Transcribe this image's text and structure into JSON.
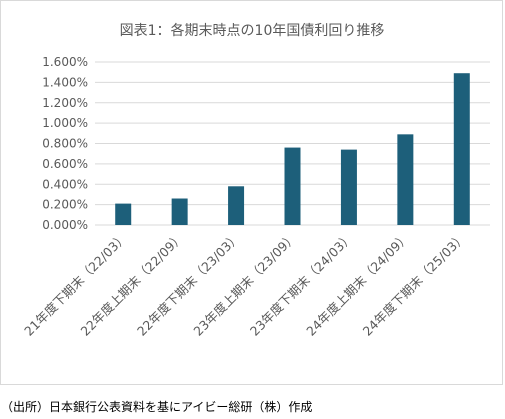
{
  "chart_data": {
    "type": "bar",
    "title": "図表1：各期末時点の10年国債利回り推移",
    "categories": [
      "21年度下期末（22/03）",
      "22年度上期末（22/09）",
      "22年度下期末（23/03）",
      "23年度上期末（23/09）",
      "23年度下期末（24/03）",
      "24年度上期末（24/09）",
      "24年度下期末（25/03）"
    ],
    "values": [
      0.21,
      0.26,
      0.38,
      0.76,
      0.74,
      0.89,
      1.49
    ],
    "ylim": [
      0,
      1.6
    ],
    "yticks": [
      "0.000%",
      "0.200%",
      "0.400%",
      "0.600%",
      "0.800%",
      "1.000%",
      "1.200%",
      "1.400%",
      "1.600%"
    ],
    "xlabel": "",
    "ylabel": "",
    "grid": true,
    "bar_color": "#1d5f7a",
    "grid_color": "#d9d9d9"
  },
  "footer": {
    "source": "（出所）日本銀行公表資料を基にアイビー総研（株）作成"
  }
}
